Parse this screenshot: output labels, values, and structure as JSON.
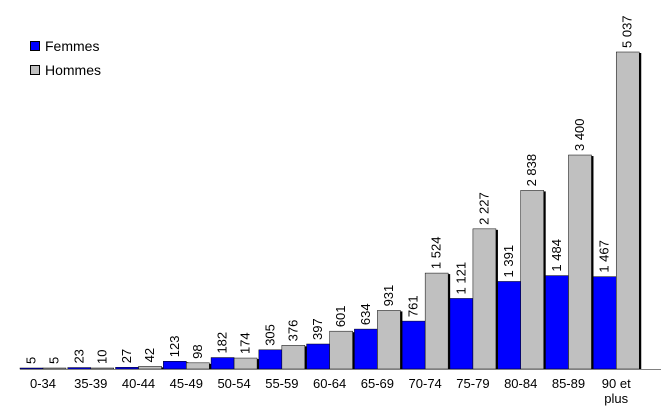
{
  "chart_data": {
    "type": "bar",
    "categories": [
      "0-34",
      "35-39",
      "40-44",
      "45-49",
      "50-54",
      "55-59",
      "60-64",
      "65-69",
      "70-74",
      "75-79",
      "80-84",
      "85-89",
      "90 et plus"
    ],
    "category_lines": [
      [
        "0-34"
      ],
      [
        "35-39"
      ],
      [
        "40-44"
      ],
      [
        "45-49"
      ],
      [
        "50-54"
      ],
      [
        "55-59"
      ],
      [
        "60-64"
      ],
      [
        "65-69"
      ],
      [
        "70-74"
      ],
      [
        "75-79"
      ],
      [
        "80-84"
      ],
      [
        "85-89"
      ],
      [
        "90 et",
        "plus"
      ]
    ],
    "series": [
      {
        "name": "Femmes",
        "color": "#0000ff",
        "values": [
          5,
          23,
          27,
          123,
          182,
          305,
          397,
          634,
          761,
          1121,
          1391,
          1484,
          1467
        ],
        "labels": [
          "5",
          "23",
          "27",
          "123",
          "182",
          "305",
          "397",
          "634",
          "761",
          "1 121",
          "1 391",
          "1 484",
          "1 467"
        ]
      },
      {
        "name": "Hommes",
        "color": "#c0c0c0",
        "values": [
          5,
          10,
          42,
          98,
          174,
          376,
          601,
          931,
          1524,
          2227,
          2838,
          3400,
          5037
        ],
        "labels": [
          "5",
          "10",
          "42",
          "98",
          "174",
          "376",
          "601",
          "931",
          "1 524",
          "2 227",
          "2 838",
          "3 400",
          "5 037"
        ]
      }
    ],
    "ylim": [
      0,
      5037
    ],
    "grid": false,
    "legend": "top-left"
  }
}
